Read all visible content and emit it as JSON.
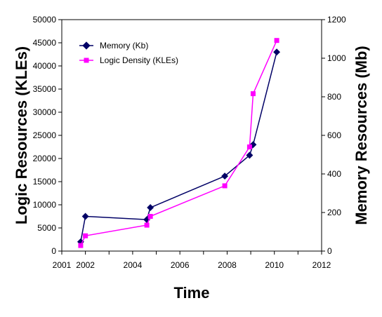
{
  "chart_data": {
    "type": "line",
    "xlabel": "Time",
    "ylabel_left": "Logic Resources (KLEs)",
    "ylabel_right": "Memory Resources (Mb)",
    "xlim": [
      2001,
      2012
    ],
    "x_ticks": [
      2001,
      2002,
      2003,
      2004,
      2005,
      2006,
      2007,
      2008,
      2009,
      2010,
      2011,
      2012
    ],
    "x_tick_labels": [
      "2001",
      "2002",
      "2004",
      "2006",
      "2008",
      "2010",
      "2012"
    ],
    "x_tick_label_values": [
      2001,
      2002,
      2004,
      2006,
      2008,
      2010,
      2012
    ],
    "ylim_left": [
      0,
      50000
    ],
    "y_ticks_left": [
      "0",
      "5000",
      "10000",
      "15000",
      "20000",
      "25000",
      "30000",
      "35000",
      "40000",
      "45000",
      "50000"
    ],
    "ylim_right": [
      0,
      1200
    ],
    "y_ticks_right": [
      "0",
      "200",
      "400",
      "600",
      "800",
      "1000",
      "1200"
    ],
    "grid": false,
    "legend_position": "top-left",
    "series": [
      {
        "name": "Memory (Kb)",
        "color": "#000066",
        "marker": "diamond",
        "axis": "left",
        "x": [
          2001.8,
          2002.0,
          2004.6,
          2004.75,
          2007.9,
          2008.95,
          2009.1,
          2010.1
        ],
        "y": [
          2000,
          7500,
          6800,
          9400,
          16200,
          20700,
          23000,
          43000
        ]
      },
      {
        "name": "Logic Density (KLEs)",
        "color": "#ff00ff",
        "marker": "square",
        "axis": "left",
        "x": [
          2001.8,
          2002.0,
          2004.6,
          2004.75,
          2007.9,
          2008.95,
          2009.1,
          2010.1
        ],
        "y": [
          1200,
          3300,
          5600,
          7500,
          14100,
          22500,
          34000,
          45500
        ]
      }
    ]
  }
}
